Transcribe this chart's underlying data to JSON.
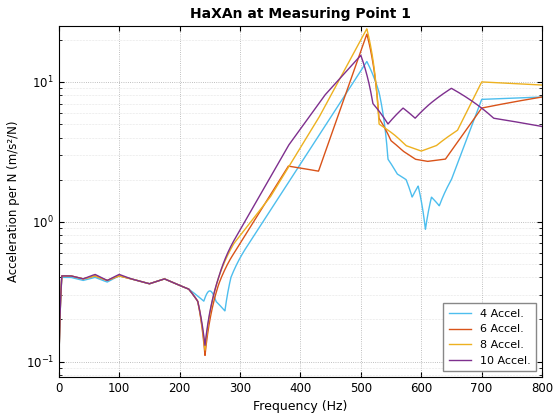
{
  "title": "HaXAn at Measuring Point 1",
  "xlabel": "Frequency (Hz)",
  "ylabel": "Acceleration per N (m/s²/N)",
  "xlim": [
    0,
    800
  ],
  "ylim": [
    0.078,
    25
  ],
  "legend": [
    "4 Accel.",
    "6 Accel.",
    "8 Accel.",
    "10 Accel."
  ],
  "colors": [
    "#4DBEEE",
    "#D95319",
    "#EDB120",
    "#7E2F8E"
  ],
  "linewidth": 1.0,
  "figsize": [
    5.6,
    4.2
  ],
  "dpi": 100
}
